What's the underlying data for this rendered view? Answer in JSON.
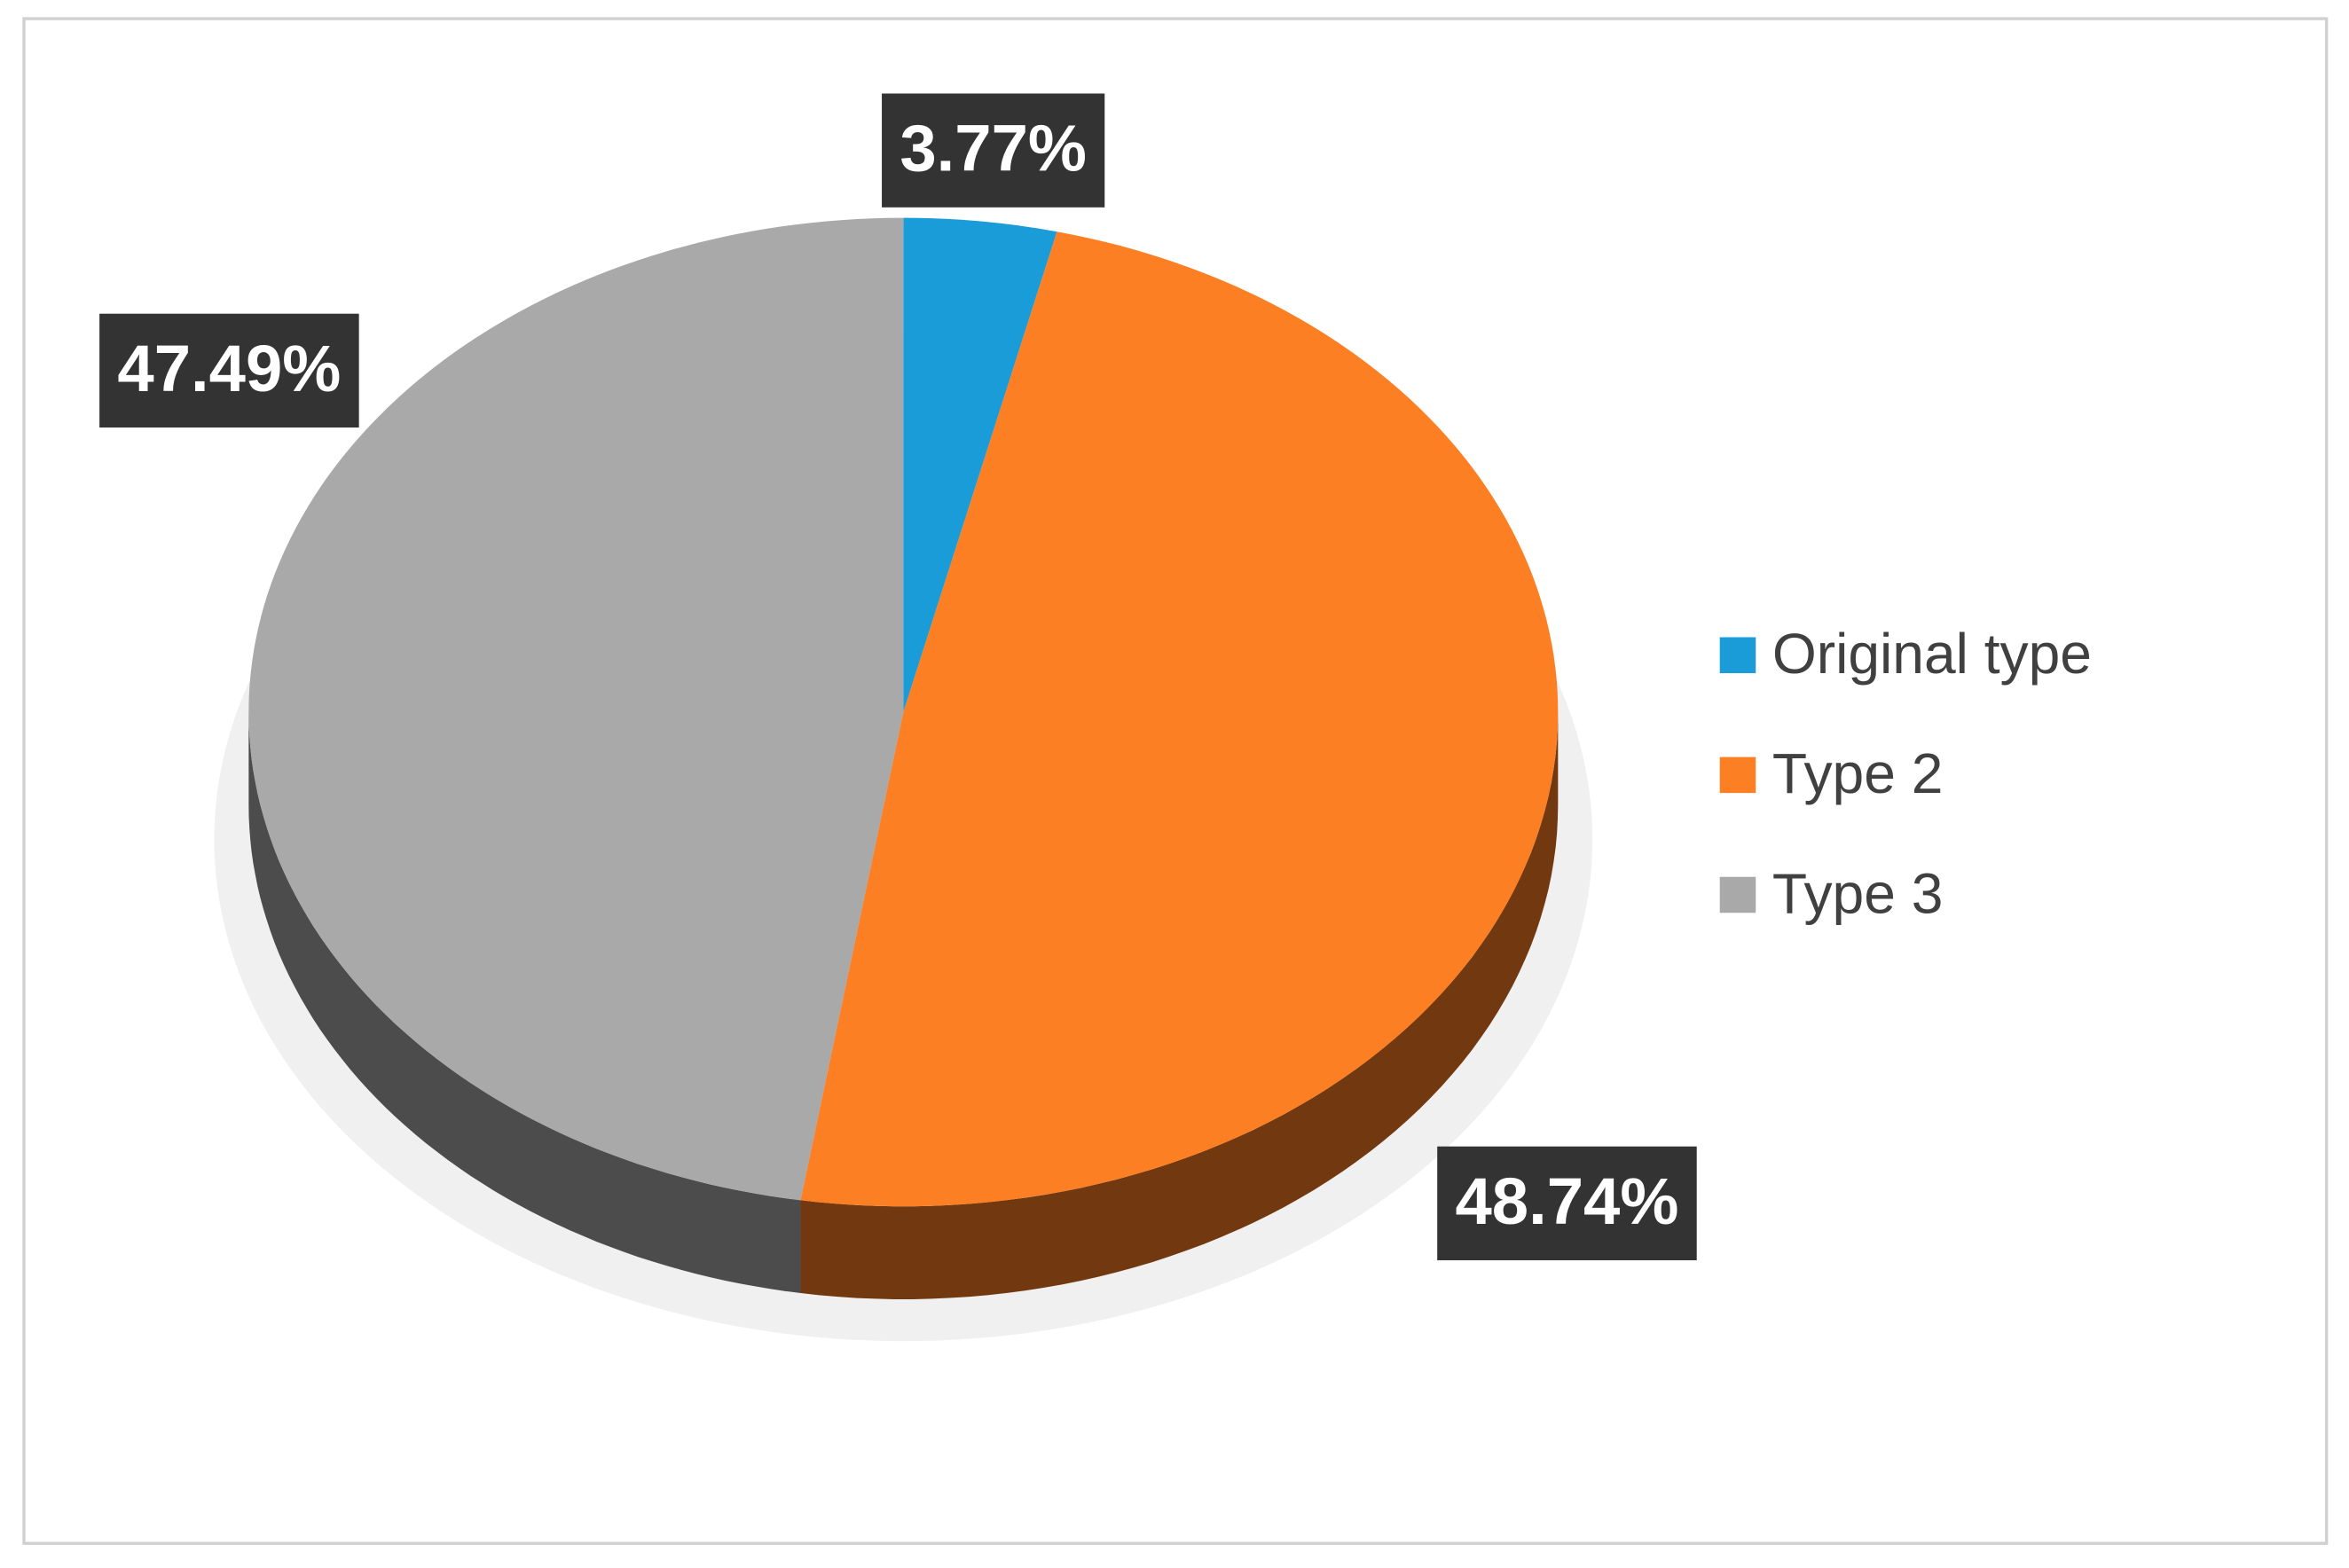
{
  "chart_data": {
    "type": "pie",
    "categories": [
      "Original type",
      "Type 2",
      "Type 3"
    ],
    "values": [
      3.77,
      48.74,
      47.49
    ],
    "value_labels": [
      "3.77%",
      "48.74%",
      "47.49%"
    ],
    "colors": [
      "#1a9cd8",
      "#fd7f23",
      "#a9a9a9"
    ],
    "legend": "right"
  }
}
